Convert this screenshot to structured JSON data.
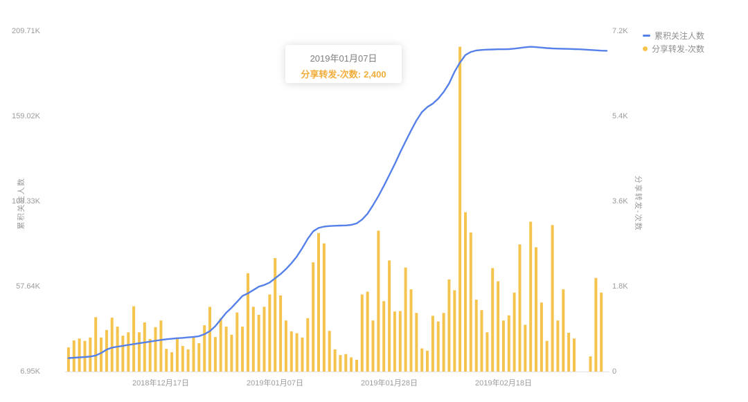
{
  "legend": {
    "items": [
      {
        "label": "累积关注人数",
        "marker": "dash",
        "color": "#5680E9"
      },
      {
        "label": "分享转发-次数",
        "marker": "dot",
        "color": "#F5C44E"
      }
    ]
  },
  "tooltip": {
    "date": "2019年01月07日",
    "series_label": "分享转发-次数:",
    "value": "2,400",
    "value_color": "#F2AE3C",
    "point_index": 38
  },
  "chart_data": {
    "type": "bar",
    "combo": "dual-axis line + bar",
    "grid": false,
    "legend_position": "top-right",
    "x_axis": {
      "num_points": 100,
      "tick_labels": [
        "2018年12月17日",
        "2019年01月07日",
        "2019年01月28日",
        "2019年02月18日"
      ],
      "tick_indices": [
        17,
        38,
        59,
        80
      ]
    },
    "left_axis": {
      "title": "累积关注人数",
      "min": 6950,
      "max": 209710,
      "tick_labels": [
        "6.95K",
        "57.64K",
        "108.33K",
        "159.02K",
        "209.71K"
      ]
    },
    "right_axis": {
      "title": "分享转发-次数",
      "min": 0,
      "max": 7200,
      "tick_labels": [
        "0",
        "1.8K",
        "3.6K",
        "5.4K",
        "7.2K"
      ]
    },
    "series": [
      {
        "name": "累积关注人数",
        "type": "line",
        "axis": "left",
        "color": "#5680E9",
        "values": [
          15000,
          15200,
          15400,
          15600,
          15900,
          16500,
          18000,
          20000,
          21200,
          21800,
          22300,
          22800,
          23300,
          23800,
          24300,
          24800,
          25300,
          25800,
          26200,
          26500,
          26800,
          27000,
          27300,
          27600,
          28000,
          29200,
          31000,
          34000,
          38000,
          42000,
          45000,
          48500,
          52000,
          53500,
          55500,
          57500,
          58500,
          60000,
          62500,
          65000,
          68000,
          71500,
          75500,
          80500,
          86000,
          90500,
          92500,
          93300,
          93600,
          93800,
          93900,
          94000,
          94300,
          95200,
          97500,
          101000,
          106000,
          111500,
          117500,
          124000,
          130500,
          137500,
          144000,
          150500,
          156500,
          161500,
          164500,
          166500,
          169500,
          173500,
          178500,
          185500,
          191000,
          195500,
          197300,
          198200,
          198500,
          198700,
          198800,
          198900,
          198900,
          199000,
          199300,
          199700,
          200100,
          200400,
          200200,
          199900,
          199600,
          199400,
          199300,
          199200,
          199100,
          199000,
          198900,
          198700,
          198500,
          198300,
          198100,
          198000
        ]
      },
      {
        "name": "分享转发-次数",
        "type": "bar",
        "axis": "right",
        "color": "#F5C44E",
        "values": [
          510,
          660,
          700,
          650,
          720,
          1150,
          720,
          880,
          1140,
          950,
          760,
          830,
          1380,
          830,
          1040,
          690,
          940,
          1080,
          480,
          410,
          710,
          540,
          470,
          730,
          600,
          980,
          1370,
          730,
          1130,
          950,
          780,
          1250,
          950,
          2080,
          1370,
          1200,
          1370,
          1630,
          2400,
          1610,
          1080,
          850,
          810,
          720,
          1130,
          2310,
          2930,
          2710,
          860,
          470,
          350,
          370,
          300,
          250,
          1630,
          1690,
          1080,
          2980,
          1490,
          2350,
          1270,
          1280,
          2200,
          1740,
          1240,
          490,
          440,
          1180,
          1060,
          1240,
          1950,
          1720,
          6870,
          3370,
          2940,
          1520,
          1300,
          830,
          2190,
          1910,
          1080,
          1190,
          1670,
          2690,
          990,
          3170,
          2630,
          1460,
          650,
          3100,
          1080,
          1740,
          820,
          700,
          0,
          0,
          320,
          1980,
          1670,
          0
        ]
      }
    ]
  }
}
